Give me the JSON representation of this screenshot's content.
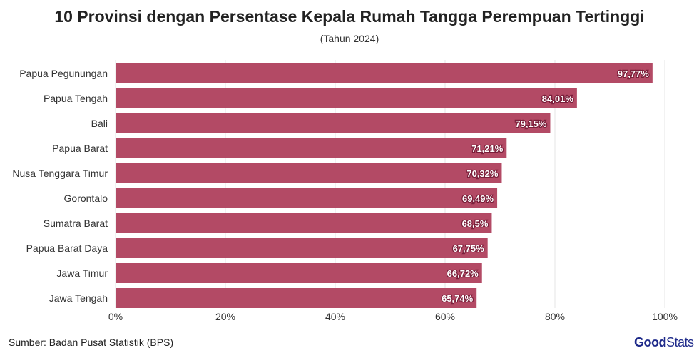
{
  "chart_data": {
    "type": "bar",
    "orientation": "horizontal",
    "title": "10 Provinsi dengan Persentase Kepala Rumah Tangga Perempuan Tertinggi",
    "subtitle": "(Tahun 2024)",
    "categories": [
      "Papua Pegunungan",
      "Papua Tengah",
      "Bali",
      "Papua Barat",
      "Nusa Tenggara Timur",
      "Gorontalo",
      "Sumatra Barat",
      "Papua Barat Daya",
      "Jawa Timur",
      "Jawa Tengah"
    ],
    "values": [
      97.77,
      84.01,
      79.15,
      71.21,
      70.32,
      69.49,
      68.5,
      67.75,
      66.72,
      65.74
    ],
    "data_labels": [
      "97,77%",
      "84,01%",
      "79,15%",
      "71,21%",
      "70,32%",
      "69,49%",
      "68,5%",
      "67,75%",
      "66,72%",
      "65,74%"
    ],
    "xlim": [
      0,
      100
    ],
    "xticks": [
      0,
      20,
      40,
      60,
      80,
      100
    ],
    "xtick_labels": [
      "0%",
      "20%",
      "40%",
      "60%",
      "80%",
      "100%"
    ],
    "grid": true,
    "bar_color": "#b34a65"
  },
  "footer": {
    "source": "Sumber: Badan Pusat Statistik (BPS)",
    "logo_bold": "Good",
    "logo_rest": "Stats"
  }
}
